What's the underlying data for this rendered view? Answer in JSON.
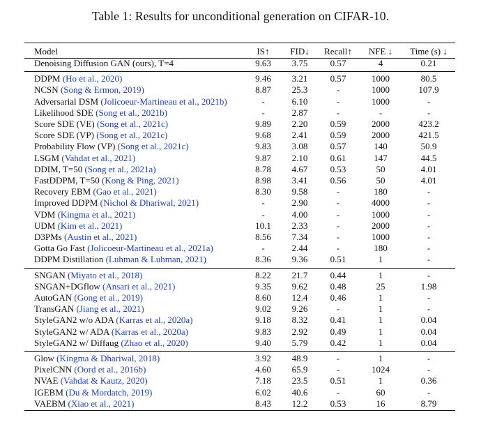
{
  "caption": "Table 1: Results for unconditional generation on CIFAR-10.",
  "headers": [
    "Model",
    "IS↑",
    "FID↓",
    "Recall↑",
    "NFE ↓",
    "Time (s) ↓"
  ],
  "groups": [
    [
      {
        "model": "Denoising Diffusion GAN (ours), T=4",
        "cite": "",
        "suffix": "",
        "is": "9.63",
        "fid": "3.75",
        "recall": "0.57",
        "nfe": "4",
        "time": "0.21"
      }
    ],
    [
      {
        "model": "DDPM ",
        "cite": "(Ho et al., 2020)",
        "suffix": "",
        "is": "9.46",
        "fid": "3.21",
        "recall": "0.57",
        "nfe": "1000",
        "time": "80.5"
      },
      {
        "model": "NCSN ",
        "cite": "(Song & Ermon, 2019)",
        "suffix": "",
        "is": "8.87",
        "fid": "25.3",
        "recall": "-",
        "nfe": "1000",
        "time": "107.9"
      },
      {
        "model": "Adversarial DSM ",
        "cite": "(Jolicoeur-Martineau et al., 2021b)",
        "suffix": "",
        "is": "-",
        "fid": "6.10",
        "recall": "-",
        "nfe": "1000",
        "time": "-"
      },
      {
        "model": "Likelihood SDE ",
        "cite": "(Song et al., 2021b)",
        "suffix": "",
        "is": "-",
        "fid": "2.87",
        "recall": "-",
        "nfe": "-",
        "time": "-"
      },
      {
        "model": "Score SDE (VE) ",
        "cite": "(Song et al., 2021c)",
        "suffix": "",
        "is": "9.89",
        "fid": "2.20",
        "recall": "0.59",
        "nfe": "2000",
        "time": "423.2"
      },
      {
        "model": "Score SDE (VP) ",
        "cite": "(Song et al., 2021c)",
        "suffix": "",
        "is": "9.68",
        "fid": "2.41",
        "recall": "0.59",
        "nfe": "2000",
        "time": "421.5"
      },
      {
        "model": "Probability Flow (VP) ",
        "cite": "(Song et al., 2021c)",
        "suffix": "",
        "is": "9.83",
        "fid": "3.08",
        "recall": "0.57",
        "nfe": "140",
        "time": "50.9"
      },
      {
        "model": "LSGM ",
        "cite": "(Vahdat et al., 2021)",
        "suffix": "",
        "is": "9.87",
        "fid": "2.10",
        "recall": "0.61",
        "nfe": "147",
        "time": "44.5"
      },
      {
        "model": "DDIM, T=50 ",
        "cite": "(Song et al., 2021a)",
        "suffix": "",
        "is": "8.78",
        "fid": "4.67",
        "recall": "0.53",
        "nfe": "50",
        "time": "4.01"
      },
      {
        "model": "FastDDPM, T=50 ",
        "cite": "(Kong & Ping, 2021)",
        "suffix": "",
        "is": "8.98",
        "fid": "3.41",
        "recall": "0.56",
        "nfe": "50",
        "time": "4.01"
      },
      {
        "model": "Recovery EBM ",
        "cite": "(Gao et al., 2021)",
        "suffix": "",
        "is": "8.30",
        "fid": "9.58",
        "recall": "-",
        "nfe": "180",
        "time": "-"
      },
      {
        "model": "Improved DDPM ",
        "cite": "(Nichol & Dhariwal, 2021)",
        "suffix": "",
        "is": "-",
        "fid": "2.90",
        "recall": "-",
        "nfe": "4000",
        "time": "-"
      },
      {
        "model": "VDM ",
        "cite": "(Kingma et al., 2021)",
        "suffix": "",
        "is": "-",
        "fid": "4.00",
        "recall": "-",
        "nfe": "1000",
        "time": "-"
      },
      {
        "model": "UDM ",
        "cite": "(Kim et al., 2021)",
        "suffix": "",
        "is": "10.1",
        "fid": "2.33",
        "recall": "-",
        "nfe": "2000",
        "time": "-"
      },
      {
        "model": "D3PMs ",
        "cite": "(Austin et al., 2021)",
        "suffix": "",
        "is": "8.56",
        "fid": "7.34",
        "recall": "-",
        "nfe": "1000",
        "time": "-"
      },
      {
        "model": "Gotta Go Fast ",
        "cite": "(Jolicoeur-Martineau et al., 2021a)",
        "suffix": "",
        "is": "-",
        "fid": "2.44",
        "recall": "-",
        "nfe": "180",
        "time": "-"
      },
      {
        "model": "DDPM Distillation ",
        "cite": "(Luhman & Luhman, 2021)",
        "suffix": "",
        "is": "8.36",
        "fid": "9.36",
        "recall": "0.51",
        "nfe": "1",
        "time": "-"
      }
    ],
    [
      {
        "model": "SNGAN ",
        "cite": "(Miyato et al., 2018)",
        "suffix": "",
        "is": "8.22",
        "fid": "21.7",
        "recall": "0.44",
        "nfe": "1",
        "time": "-"
      },
      {
        "model": "SNGAN+DGflow ",
        "cite": "(Ansari et al., 2021)",
        "suffix": "",
        "is": "9.35",
        "fid": "9.62",
        "recall": "0.48",
        "nfe": "25",
        "time": "1.98"
      },
      {
        "model": "AutoGAN ",
        "cite": "(Gong et al., 2019)",
        "suffix": "",
        "is": "8.60",
        "fid": "12.4",
        "recall": "0.46",
        "nfe": "1",
        "time": "-"
      },
      {
        "model": "TransGAN ",
        "cite": "(Jiang et al., 2021)",
        "suffix": "",
        "is": "9.02",
        "fid": "9.26",
        "recall": "-",
        "nfe": "1",
        "time": "-"
      },
      {
        "model": "StyleGAN2 w/o ADA ",
        "cite": "(Karras et al., 2020a)",
        "suffix": "",
        "is": "9.18",
        "fid": "8.32",
        "recall": "0.41",
        "nfe": "1",
        "time": "0.04"
      },
      {
        "model": "StyleGAN2 w/ ADA ",
        "cite": "(Karras et al., 2020a)",
        "suffix": "",
        "is": "9.83",
        "fid": "2.92",
        "recall": "0.49",
        "nfe": "1",
        "time": "0.04"
      },
      {
        "model": "StyleGAN2 w/ Diffaug ",
        "cite": "(Zhao et al., 2020)",
        "suffix": "",
        "is": "9.40",
        "fid": "5.79",
        "recall": "0.42",
        "nfe": "1",
        "time": "0.04"
      }
    ],
    [
      {
        "model": "Glow ",
        "cite": "(Kingma & Dhariwal, 2018)",
        "suffix": "",
        "is": "3.92",
        "fid": "48.9",
        "recall": "-",
        "nfe": "1",
        "time": "-"
      },
      {
        "model": "PixelCNN ",
        "cite": "(Oord et al., 2016b)",
        "suffix": "",
        "is": "4.60",
        "fid": "65.9",
        "recall": "-",
        "nfe": "1024",
        "time": "-"
      },
      {
        "model": "NVAE ",
        "cite": "(Vahdat & Kautz, 2020)",
        "suffix": "",
        "is": "7.18",
        "fid": "23.5",
        "recall": "0.51",
        "nfe": "1",
        "time": "0.36"
      },
      {
        "model": "IGEBM ",
        "cite": "(Du & Mordatch, 2019)",
        "suffix": "",
        "is": "6.02",
        "fid": "40.6",
        "recall": "-",
        "nfe": "60",
        "time": "-"
      },
      {
        "model": "VAEBM ",
        "cite": "(Xiao et al., 2021)",
        "suffix": "",
        "is": "8.43",
        "fid": "12.2",
        "recall": "0.53",
        "nfe": "16",
        "time": "8.79"
      }
    ]
  ]
}
